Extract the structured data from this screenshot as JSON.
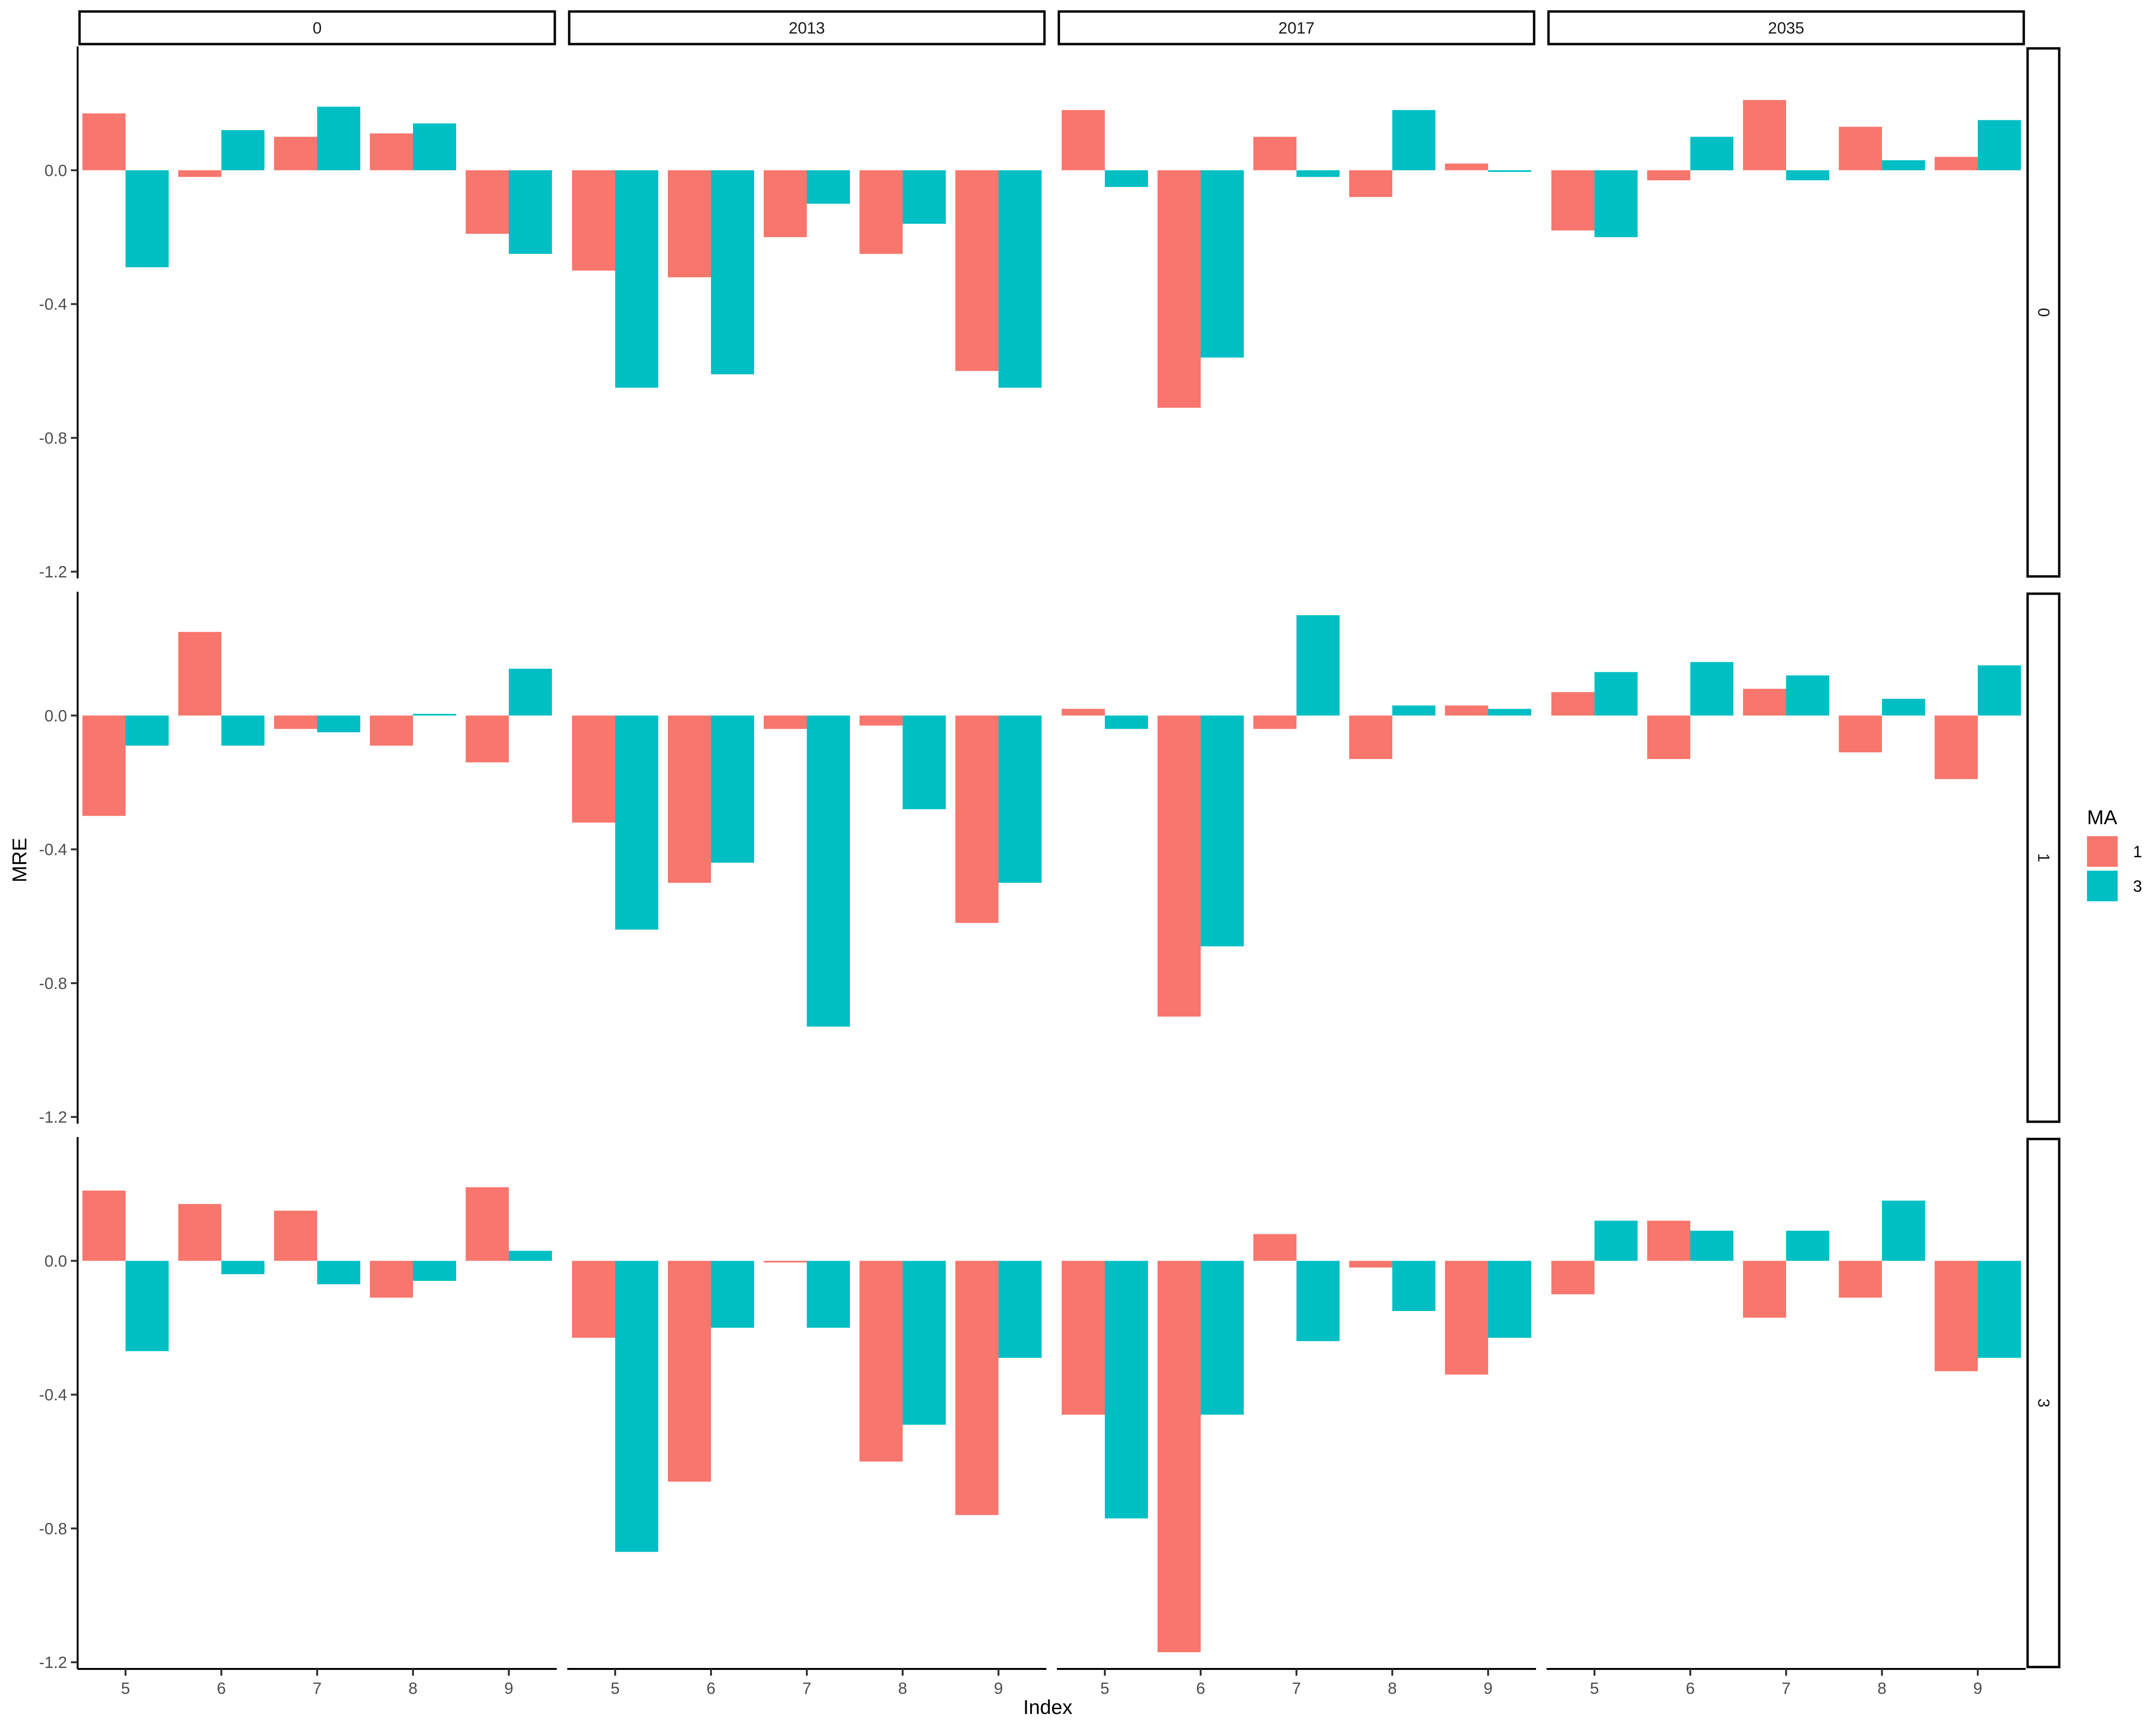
{
  "chart_data": {
    "type": "bar",
    "xlabel": "Index",
    "ylabel": "MRE",
    "ylim": [
      -1.22,
      0.37
    ],
    "y_ticks": [
      0.0,
      -0.4,
      -0.8,
      -1.2
    ],
    "y_tick_labels": [
      "0.0",
      "-0.4",
      "-0.8",
      "-1.2"
    ],
    "categories": [
      "5",
      "6",
      "7",
      "8",
      "9"
    ],
    "col_facets": [
      "0",
      "2013",
      "2017",
      "2035"
    ],
    "row_facets": [
      "0",
      "1",
      "3"
    ],
    "legend": {
      "title": "MA",
      "position": "right",
      "entries": [
        {
          "label": "1",
          "color": "#F8766D"
        },
        {
          "label": "3",
          "color": "#00BFC4"
        }
      ]
    },
    "grid": false,
    "panels": [
      {
        "row": "0",
        "col": "0",
        "series": [
          {
            "ma": "1",
            "values": [
              0.17,
              -0.02,
              0.1,
              0.11,
              -0.19
            ]
          },
          {
            "ma": "3",
            "values": [
              -0.29,
              0.12,
              0.19,
              0.14,
              -0.25
            ]
          }
        ]
      },
      {
        "row": "0",
        "col": "2013",
        "series": [
          {
            "ma": "1",
            "values": [
              -0.3,
              -0.32,
              -0.2,
              -0.25,
              -0.6
            ]
          },
          {
            "ma": "3",
            "values": [
              -0.65,
              -0.61,
              -0.1,
              -0.16,
              -0.65
            ]
          }
        ]
      },
      {
        "row": "0",
        "col": "2017",
        "series": [
          {
            "ma": "1",
            "values": [
              0.18,
              -0.71,
              0.1,
              -0.08,
              0.02
            ]
          },
          {
            "ma": "3",
            "values": [
              -0.05,
              -0.56,
              -0.02,
              0.18,
              -0.005
            ]
          }
        ]
      },
      {
        "row": "0",
        "col": "2035",
        "series": [
          {
            "ma": "1",
            "values": [
              -0.18,
              -0.03,
              0.21,
              0.13,
              0.04
            ]
          },
          {
            "ma": "3",
            "values": [
              -0.2,
              0.1,
              -0.03,
              0.03,
              0.15
            ]
          }
        ]
      },
      {
        "row": "1",
        "col": "0",
        "series": [
          {
            "ma": "1",
            "values": [
              -0.3,
              0.25,
              -0.04,
              -0.09,
              -0.14
            ]
          },
          {
            "ma": "3",
            "values": [
              -0.09,
              -0.09,
              -0.05,
              0.005,
              0.14
            ]
          }
        ]
      },
      {
        "row": "1",
        "col": "2013",
        "series": [
          {
            "ma": "1",
            "values": [
              -0.32,
              -0.5,
              -0.04,
              -0.03,
              -0.62
            ]
          },
          {
            "ma": "3",
            "values": [
              -0.64,
              -0.44,
              -0.93,
              -0.28,
              -0.5
            ]
          }
        ]
      },
      {
        "row": "1",
        "col": "2017",
        "series": [
          {
            "ma": "1",
            "values": [
              0.02,
              -0.9,
              -0.04,
              -0.13,
              0.03
            ]
          },
          {
            "ma": "3",
            "values": [
              -0.04,
              -0.69,
              0.3,
              0.03,
              0.02
            ]
          }
        ]
      },
      {
        "row": "1",
        "col": "2035",
        "series": [
          {
            "ma": "1",
            "values": [
              0.07,
              -0.13,
              0.08,
              -0.11,
              -0.19
            ]
          },
          {
            "ma": "3",
            "values": [
              0.13,
              0.16,
              0.12,
              0.05,
              0.15
            ]
          }
        ]
      },
      {
        "row": "3",
        "col": "0",
        "series": [
          {
            "ma": "1",
            "values": [
              0.21,
              0.17,
              0.15,
              -0.11,
              0.22
            ]
          },
          {
            "ma": "3",
            "values": [
              -0.27,
              -0.04,
              -0.07,
              -0.06,
              0.03
            ]
          }
        ]
      },
      {
        "row": "3",
        "col": "2013",
        "series": [
          {
            "ma": "1",
            "values": [
              -0.23,
              -0.66,
              -0.005,
              -0.6,
              -0.76
            ]
          },
          {
            "ma": "3",
            "values": [
              -0.87,
              -0.2,
              -0.2,
              -0.49,
              -0.29
            ]
          }
        ]
      },
      {
        "row": "3",
        "col": "2017",
        "series": [
          {
            "ma": "1",
            "values": [
              -0.46,
              -1.17,
              0.08,
              -0.02,
              -0.34
            ]
          },
          {
            "ma": "3",
            "values": [
              -0.77,
              -0.46,
              -0.24,
              -0.15,
              -0.23
            ]
          }
        ]
      },
      {
        "row": "3",
        "col": "2035",
        "series": [
          {
            "ma": "1",
            "values": [
              -0.1,
              0.12,
              -0.17,
              -0.11,
              -0.33
            ]
          },
          {
            "ma": "3",
            "values": [
              0.12,
              0.09,
              0.09,
              0.18,
              -0.29
            ]
          }
        ]
      }
    ]
  }
}
